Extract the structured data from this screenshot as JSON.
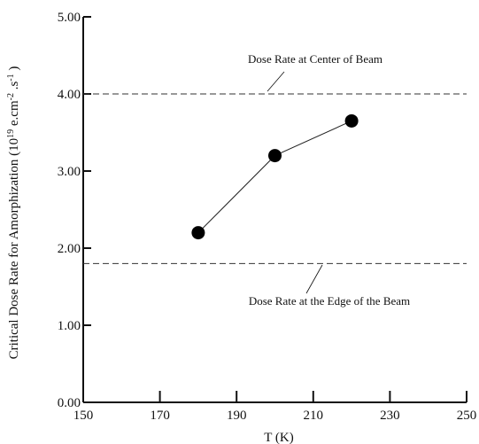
{
  "chart_data": {
    "type": "line",
    "xlabel": "T (K)",
    "ylabel": "Critical Dose Rate for Amorphization (10 19 e.cm -2 .s -1 )",
    "ylabel_parts": {
      "prefix": "Critical Dose Rate for Amorphization (10",
      "exp1": "19",
      "mid1": " e.cm",
      "exp2": "-2",
      "mid2": " .s",
      "exp3": "-1",
      "suffix": " )"
    },
    "xlim": [
      150,
      250
    ],
    "ylim": [
      0,
      5
    ],
    "x_ticks": [
      "150",
      "170",
      "190",
      "210",
      "230",
      "250"
    ],
    "y_ticks": [
      "0.00",
      "1.00",
      "2.00",
      "3.00",
      "4.00",
      "5.00"
    ],
    "series": [
      {
        "x": [
          180,
          200,
          220
        ],
        "y": [
          2.2,
          3.2,
          3.65
        ]
      }
    ],
    "reference_lines": [
      {
        "y": 4.0,
        "label": "Dose Rate at Center of Beam",
        "style": "dashed"
      },
      {
        "y": 1.8,
        "label": "Dose Rate at the Edge of the Beam",
        "style": "dashed"
      }
    ],
    "grid": false,
    "legend": "none"
  }
}
